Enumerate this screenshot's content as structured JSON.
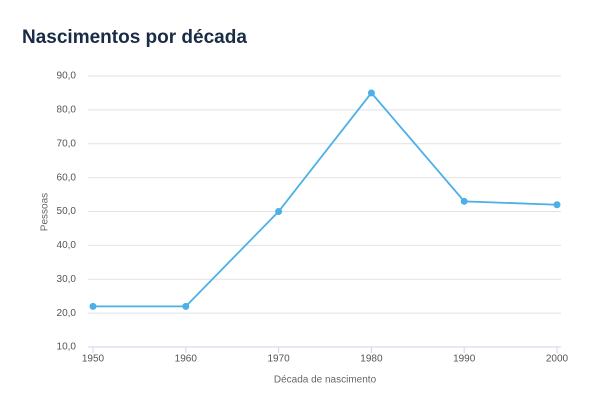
{
  "chart_data": {
    "type": "line",
    "title": "Nascimentos por década",
    "x_label": "Década de nascimento",
    "y_label": "Pessoas",
    "x": [
      1950,
      1960,
      1970,
      1980,
      1990,
      2000
    ],
    "series": [
      {
        "name": "Pessoas",
        "color": "#4cb0e8",
        "values": [
          22,
          22,
          50,
          85,
          53,
          52
        ]
      }
    ],
    "xlim": [
      1950,
      2000
    ],
    "xticks": [
      1950,
      1960,
      1970,
      1980,
      1990,
      2000
    ],
    "ylim": [
      10,
      90
    ],
    "yticks": [
      {
        "value": 10,
        "label": "10,0"
      },
      {
        "value": 20,
        "label": "20,0"
      },
      {
        "value": 30,
        "label": "30,0"
      },
      {
        "value": 40,
        "label": "40,0"
      },
      {
        "value": 50,
        "label": "50,0"
      },
      {
        "value": 60,
        "label": "60,0"
      },
      {
        "value": 70,
        "label": "70,0"
      },
      {
        "value": 80,
        "label": "80,0"
      },
      {
        "value": 90,
        "label": "90,0"
      }
    ],
    "grid": true
  }
}
